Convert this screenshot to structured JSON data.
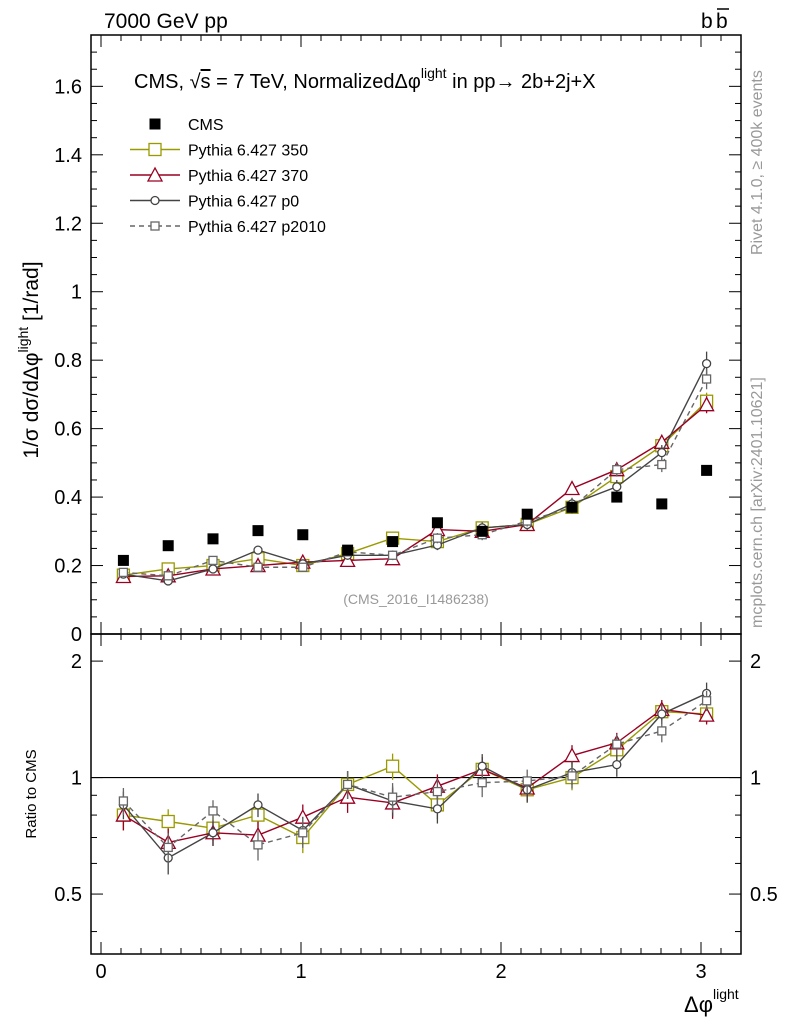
{
  "header": {
    "left": "7000 GeV pp",
    "right": "b",
    "right_bar": "b"
  },
  "side_labels": {
    "rivet": "Rivet 4.1.0, ≥ 400k events",
    "mcplots": "mcplots.cern.ch [arXiv:2401.10621]"
  },
  "chart_data": {
    "type": "scatter",
    "title_parts": {
      "a": "CMS, ",
      "sqrt": "√",
      "s": "s",
      "b": " = 7 TeV, NormalizedΔφ",
      "sup": "light",
      "c": " in pp→  2b+2j+X"
    },
    "watermark": "(CMS_2016_I1486238)",
    "ylabel_main": {
      "prefix": "1/σ dσ/dΔφ",
      "sup": "light",
      "suffix": " [1/rad]"
    },
    "ylabel_ratio": "Ratio to CMS",
    "xlabel": {
      "base": "Δφ",
      "sup": "light"
    },
    "xlim": [
      -0.05,
      3.2
    ],
    "ylim_main": [
      0,
      1.75
    ],
    "ylim_ratio": [
      0.35,
      2.35
    ],
    "x_ticks": [
      "0",
      "1",
      "2",
      "3"
    ],
    "y_ticks_main": [
      "0",
      "0.2",
      "0.4",
      "0.6",
      "0.8",
      "1",
      "1.2",
      "1.4",
      "1.6"
    ],
    "y_ticks_ratio": [
      "0.5",
      "1",
      "2"
    ],
    "x": [
      0.112,
      0.336,
      0.56,
      0.785,
      1.009,
      1.233,
      1.458,
      1.682,
      1.906,
      2.131,
      2.355,
      2.579,
      2.804,
      3.028
    ],
    "series": [
      {
        "name": "CMS",
        "color": "#000000",
        "marker": "filled-square",
        "style": "none",
        "values": [
          0.215,
          0.258,
          0.278,
          0.302,
          0.29,
          0.245,
          0.27,
          0.325,
          0.3,
          0.35,
          0.37,
          0.4,
          0.38,
          0.478
        ],
        "errors": [
          0.004,
          0.004,
          0.004,
          0.004,
          0.004,
          0.004,
          0.004,
          0.004,
          0.004,
          0.004,
          0.004,
          0.005,
          0.005,
          0.006
        ],
        "ratio": [
          1,
          1,
          1,
          1,
          1,
          1,
          1,
          1,
          1,
          1,
          1,
          1,
          1,
          1
        ]
      },
      {
        "name": "Pythia 6.427 350",
        "color": "#999900",
        "marker": "open-square",
        "style": "solid",
        "values": [
          0.172,
          0.19,
          0.2,
          0.22,
          0.2,
          0.235,
          0.28,
          0.27,
          0.31,
          0.32,
          0.37,
          0.46,
          0.55,
          0.68
        ],
        "errors": [
          0.01,
          0.01,
          0.01,
          0.012,
          0.012,
          0.013,
          0.015,
          0.015,
          0.016,
          0.016,
          0.018,
          0.02,
          0.022,
          0.025
        ],
        "ratio": [
          0.8,
          0.77,
          0.74,
          0.8,
          0.7,
          0.96,
          1.07,
          0.85,
          1.05,
          0.93,
          1.0,
          1.18,
          1.48,
          1.46
        ]
      },
      {
        "name": "Pythia 6.427 370",
        "color": "#990022",
        "marker": "open-triangle",
        "style": "solid",
        "values": [
          0.168,
          0.17,
          0.19,
          0.2,
          0.21,
          0.215,
          0.22,
          0.305,
          0.3,
          0.32,
          0.425,
          0.48,
          0.56,
          0.67
        ],
        "errors": [
          0.01,
          0.01,
          0.01,
          0.012,
          0.012,
          0.013,
          0.014,
          0.015,
          0.016,
          0.016,
          0.018,
          0.02,
          0.022,
          0.025
        ],
        "ratio": [
          0.8,
          0.68,
          0.72,
          0.71,
          0.79,
          0.89,
          0.86,
          0.95,
          1.05,
          0.94,
          1.14,
          1.23,
          1.5,
          1.45
        ]
      },
      {
        "name": "Pythia 6.427 p0",
        "color": "#444444",
        "marker": "open-circle",
        "style": "solid",
        "values": [
          0.175,
          0.155,
          0.19,
          0.245,
          0.205,
          0.23,
          0.23,
          0.26,
          0.31,
          0.32,
          0.38,
          0.43,
          0.53,
          0.79
        ],
        "errors": [
          0.01,
          0.01,
          0.01,
          0.012,
          0.012,
          0.013,
          0.014,
          0.015,
          0.016,
          0.016,
          0.018,
          0.02,
          0.022,
          0.035
        ],
        "ratio": [
          0.85,
          0.62,
          0.72,
          0.85,
          0.73,
          0.96,
          0.87,
          0.83,
          1.07,
          0.93,
          1.03,
          1.08,
          1.46,
          1.65
        ]
      },
      {
        "name": "Pythia 6.427 p2010",
        "color": "#666666",
        "marker": "open-square",
        "style": "dashed",
        "values": [
          0.18,
          0.17,
          0.215,
          0.195,
          0.195,
          0.24,
          0.23,
          0.28,
          0.29,
          0.33,
          0.37,
          0.48,
          0.495,
          0.745
        ],
        "errors": [
          0.01,
          0.01,
          0.01,
          0.012,
          0.012,
          0.013,
          0.014,
          0.015,
          0.016,
          0.016,
          0.018,
          0.02,
          0.022,
          0.03
        ],
        "ratio": [
          0.87,
          0.66,
          0.82,
          0.67,
          0.72,
          0.96,
          0.89,
          0.92,
          0.97,
          0.98,
          1.01,
          1.22,
          1.32,
          1.58
        ]
      }
    ]
  }
}
